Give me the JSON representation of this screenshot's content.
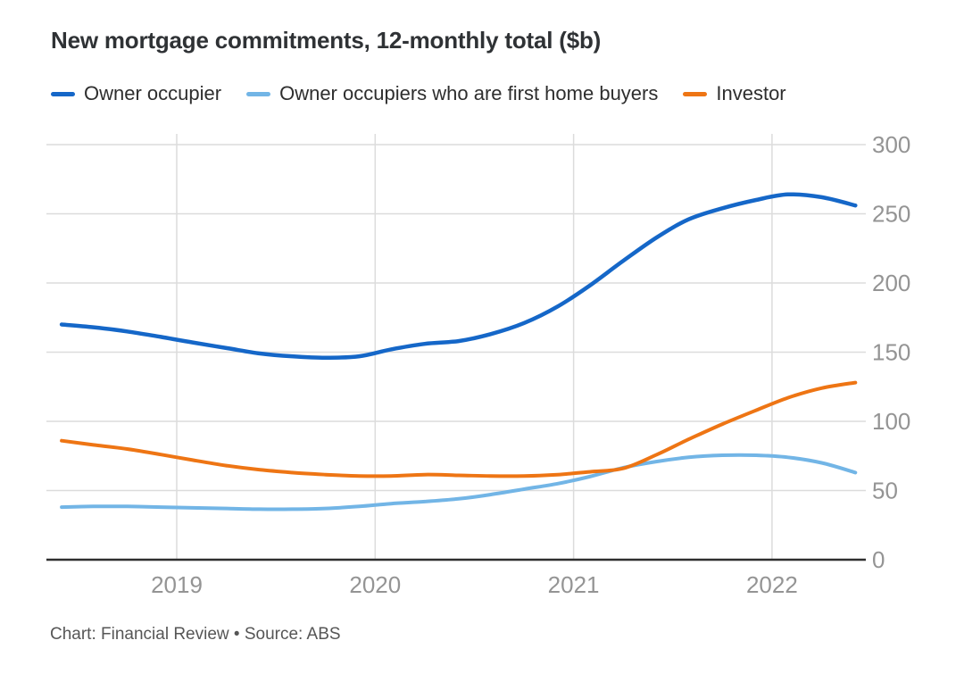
{
  "title": "New mortgage commitments, 12-monthly total ($b)",
  "footer": {
    "text": "Chart: Financial Review • Source: ABS"
  },
  "colors": {
    "background": "#ffffff",
    "title_text": "#2f3235",
    "legend_text": "#2e2e2e",
    "grid": "#dcdcdc",
    "axis_line": "#2f2f2f",
    "tick_label": "#949494",
    "source_text": "#565656"
  },
  "chart_data": {
    "type": "line",
    "title": "New mortgage commitments, 12-monthly total ($b)",
    "xlabel": "",
    "ylabel": "",
    "xlim": [
      2018.42,
      2022.45
    ],
    "ylim": [
      0,
      300
    ],
    "grid": true,
    "legend_position": "top",
    "xticks": [
      "2019",
      "2020",
      "2021",
      "2022"
    ],
    "xtick_values": [
      2019,
      2020,
      2021,
      2022
    ],
    "yticks": [
      "300",
      "250",
      "200",
      "150",
      "100",
      "50",
      "0"
    ],
    "ytick_values": [
      300,
      250,
      200,
      150,
      100,
      50,
      0
    ],
    "x": [
      2018.42,
      2018.58,
      2018.75,
      2018.92,
      2019.08,
      2019.25,
      2019.42,
      2019.58,
      2019.75,
      2019.92,
      2020.08,
      2020.25,
      2020.42,
      2020.58,
      2020.75,
      2020.92,
      2021.08,
      2021.25,
      2021.42,
      2021.58,
      2021.75,
      2021.92,
      2022.08,
      2022.25,
      2022.42
    ],
    "series": [
      {
        "name": "Owner occupier",
        "color": "#1567c8",
        "stroke_width": 4.5,
        "values": [
          170,
          168,
          165,
          161,
          157,
          153,
          149,
          147,
          146,
          147,
          152,
          156,
          158,
          163,
          171,
          183,
          198,
          216,
          233,
          246,
          254,
          260,
          264,
          262,
          256
        ]
      },
      {
        "name": "Owner occupiers who are first home buyers",
        "color": "#72b5e6",
        "stroke_width": 4,
        "values": [
          38,
          38.5,
          38.5,
          38,
          37.5,
          37,
          36.5,
          36.5,
          37,
          38.5,
          40.5,
          42,
          44,
          47,
          51,
          55,
          60,
          66.5,
          71,
          74,
          75.5,
          75.5,
          74,
          70,
          63
        ]
      },
      {
        "name": "Investor",
        "color": "#ee7514",
        "stroke_width": 4,
        "values": [
          86,
          83,
          80,
          76,
          72,
          68,
          65,
          63,
          61.5,
          60.5,
          60.5,
          61.5,
          61,
          60.5,
          60.5,
          61.5,
          63.5,
          66,
          76,
          87,
          98,
          108,
          117,
          124,
          128
        ]
      }
    ]
  }
}
